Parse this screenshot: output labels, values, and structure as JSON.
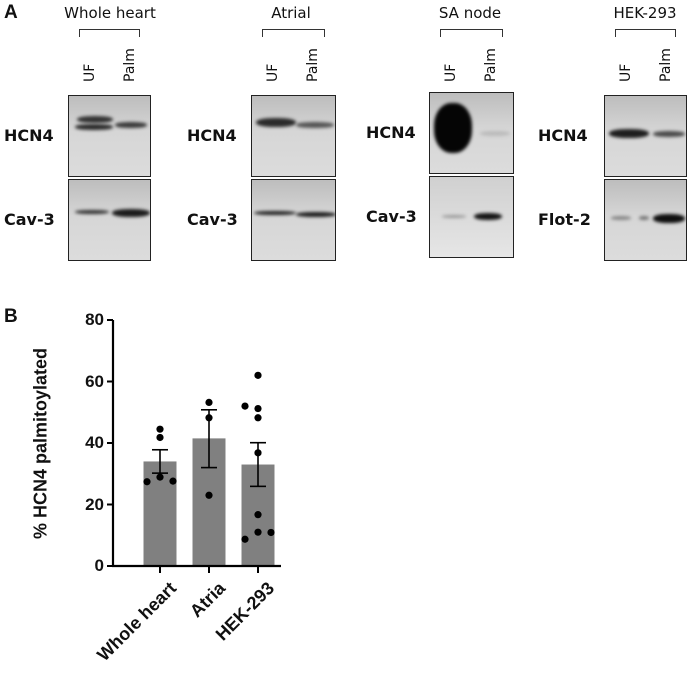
{
  "panel_a": {
    "letter": "A",
    "lanes": [
      "UF",
      "Palm"
    ],
    "groups": [
      {
        "title": "Whole heart",
        "rows": [
          "HCN4",
          "Cav-3"
        ]
      },
      {
        "title": "Atrial",
        "rows": [
          "HCN4",
          "Cav-3"
        ]
      },
      {
        "title": "SA node",
        "rows": [
          "HCN4",
          "Cav-3"
        ]
      },
      {
        "title": "HEK-293",
        "rows": [
          "HCN4",
          "Flot-2"
        ]
      }
    ]
  },
  "panel_b": {
    "letter": "B"
  },
  "chart_data": {
    "type": "bar",
    "title": "",
    "xlabel": "",
    "ylabel": "% HCN4 palmitoylated",
    "categories": [
      "Whole heart",
      "Atria",
      "HEK-293"
    ],
    "values": [
      34,
      41.5,
      33
    ],
    "error_bars_sem": [
      {
        "low": 30.2,
        "high": 37.8
      },
      {
        "low": 32,
        "high": 50.8
      },
      {
        "low": 25.9,
        "high": 40.1
      }
    ],
    "points": [
      [
        44.5,
        41.8,
        28.9,
        27.4,
        27.6
      ],
      [
        53.2,
        48.2,
        23
      ],
      [
        62,
        52,
        51.2,
        48.2,
        36.8,
        16.7,
        11,
        10.9,
        8.7
      ]
    ],
    "ylim": [
      0,
      80
    ],
    "yticks": [
      0,
      20,
      40,
      60,
      80
    ],
    "grid": false,
    "bar_color": "#808080",
    "point_color": "#000000"
  }
}
